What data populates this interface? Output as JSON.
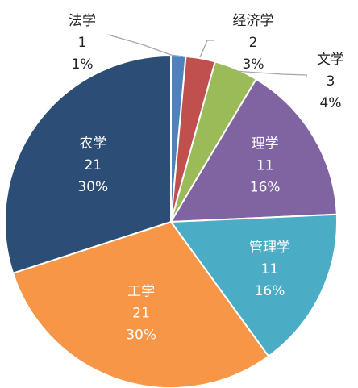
{
  "chart_data": {
    "type": "pie",
    "title": "",
    "start_angle_deg": 0,
    "direction": "clockwise",
    "legend": "none",
    "slices": [
      {
        "category": "法学",
        "value": 1,
        "percent_label": "1%",
        "color": "#4f81bd",
        "label_position": "outside"
      },
      {
        "category": "经济学",
        "value": 2,
        "percent_label": "3%",
        "color": "#c0504d",
        "label_position": "outside"
      },
      {
        "category": "文学",
        "value": 3,
        "percent_label": "4%",
        "color": "#9bbb59",
        "label_position": "outside"
      },
      {
        "category": "理学",
        "value": 11,
        "percent_label": "16%",
        "color": "#8064a2",
        "label_position": "inside"
      },
      {
        "category": "管理学",
        "value": 11,
        "percent_label": "16%",
        "color": "#4bacc6",
        "label_position": "inside"
      },
      {
        "category": "工学",
        "value": 21,
        "percent_label": "30%",
        "color": "#f79646",
        "label_position": "inside"
      },
      {
        "category": "农学",
        "value": 21,
        "percent_label": "30%",
        "color": "#2c4d75",
        "label_position": "inside"
      }
    ],
    "leader_line_color": "#a6a6a6"
  }
}
